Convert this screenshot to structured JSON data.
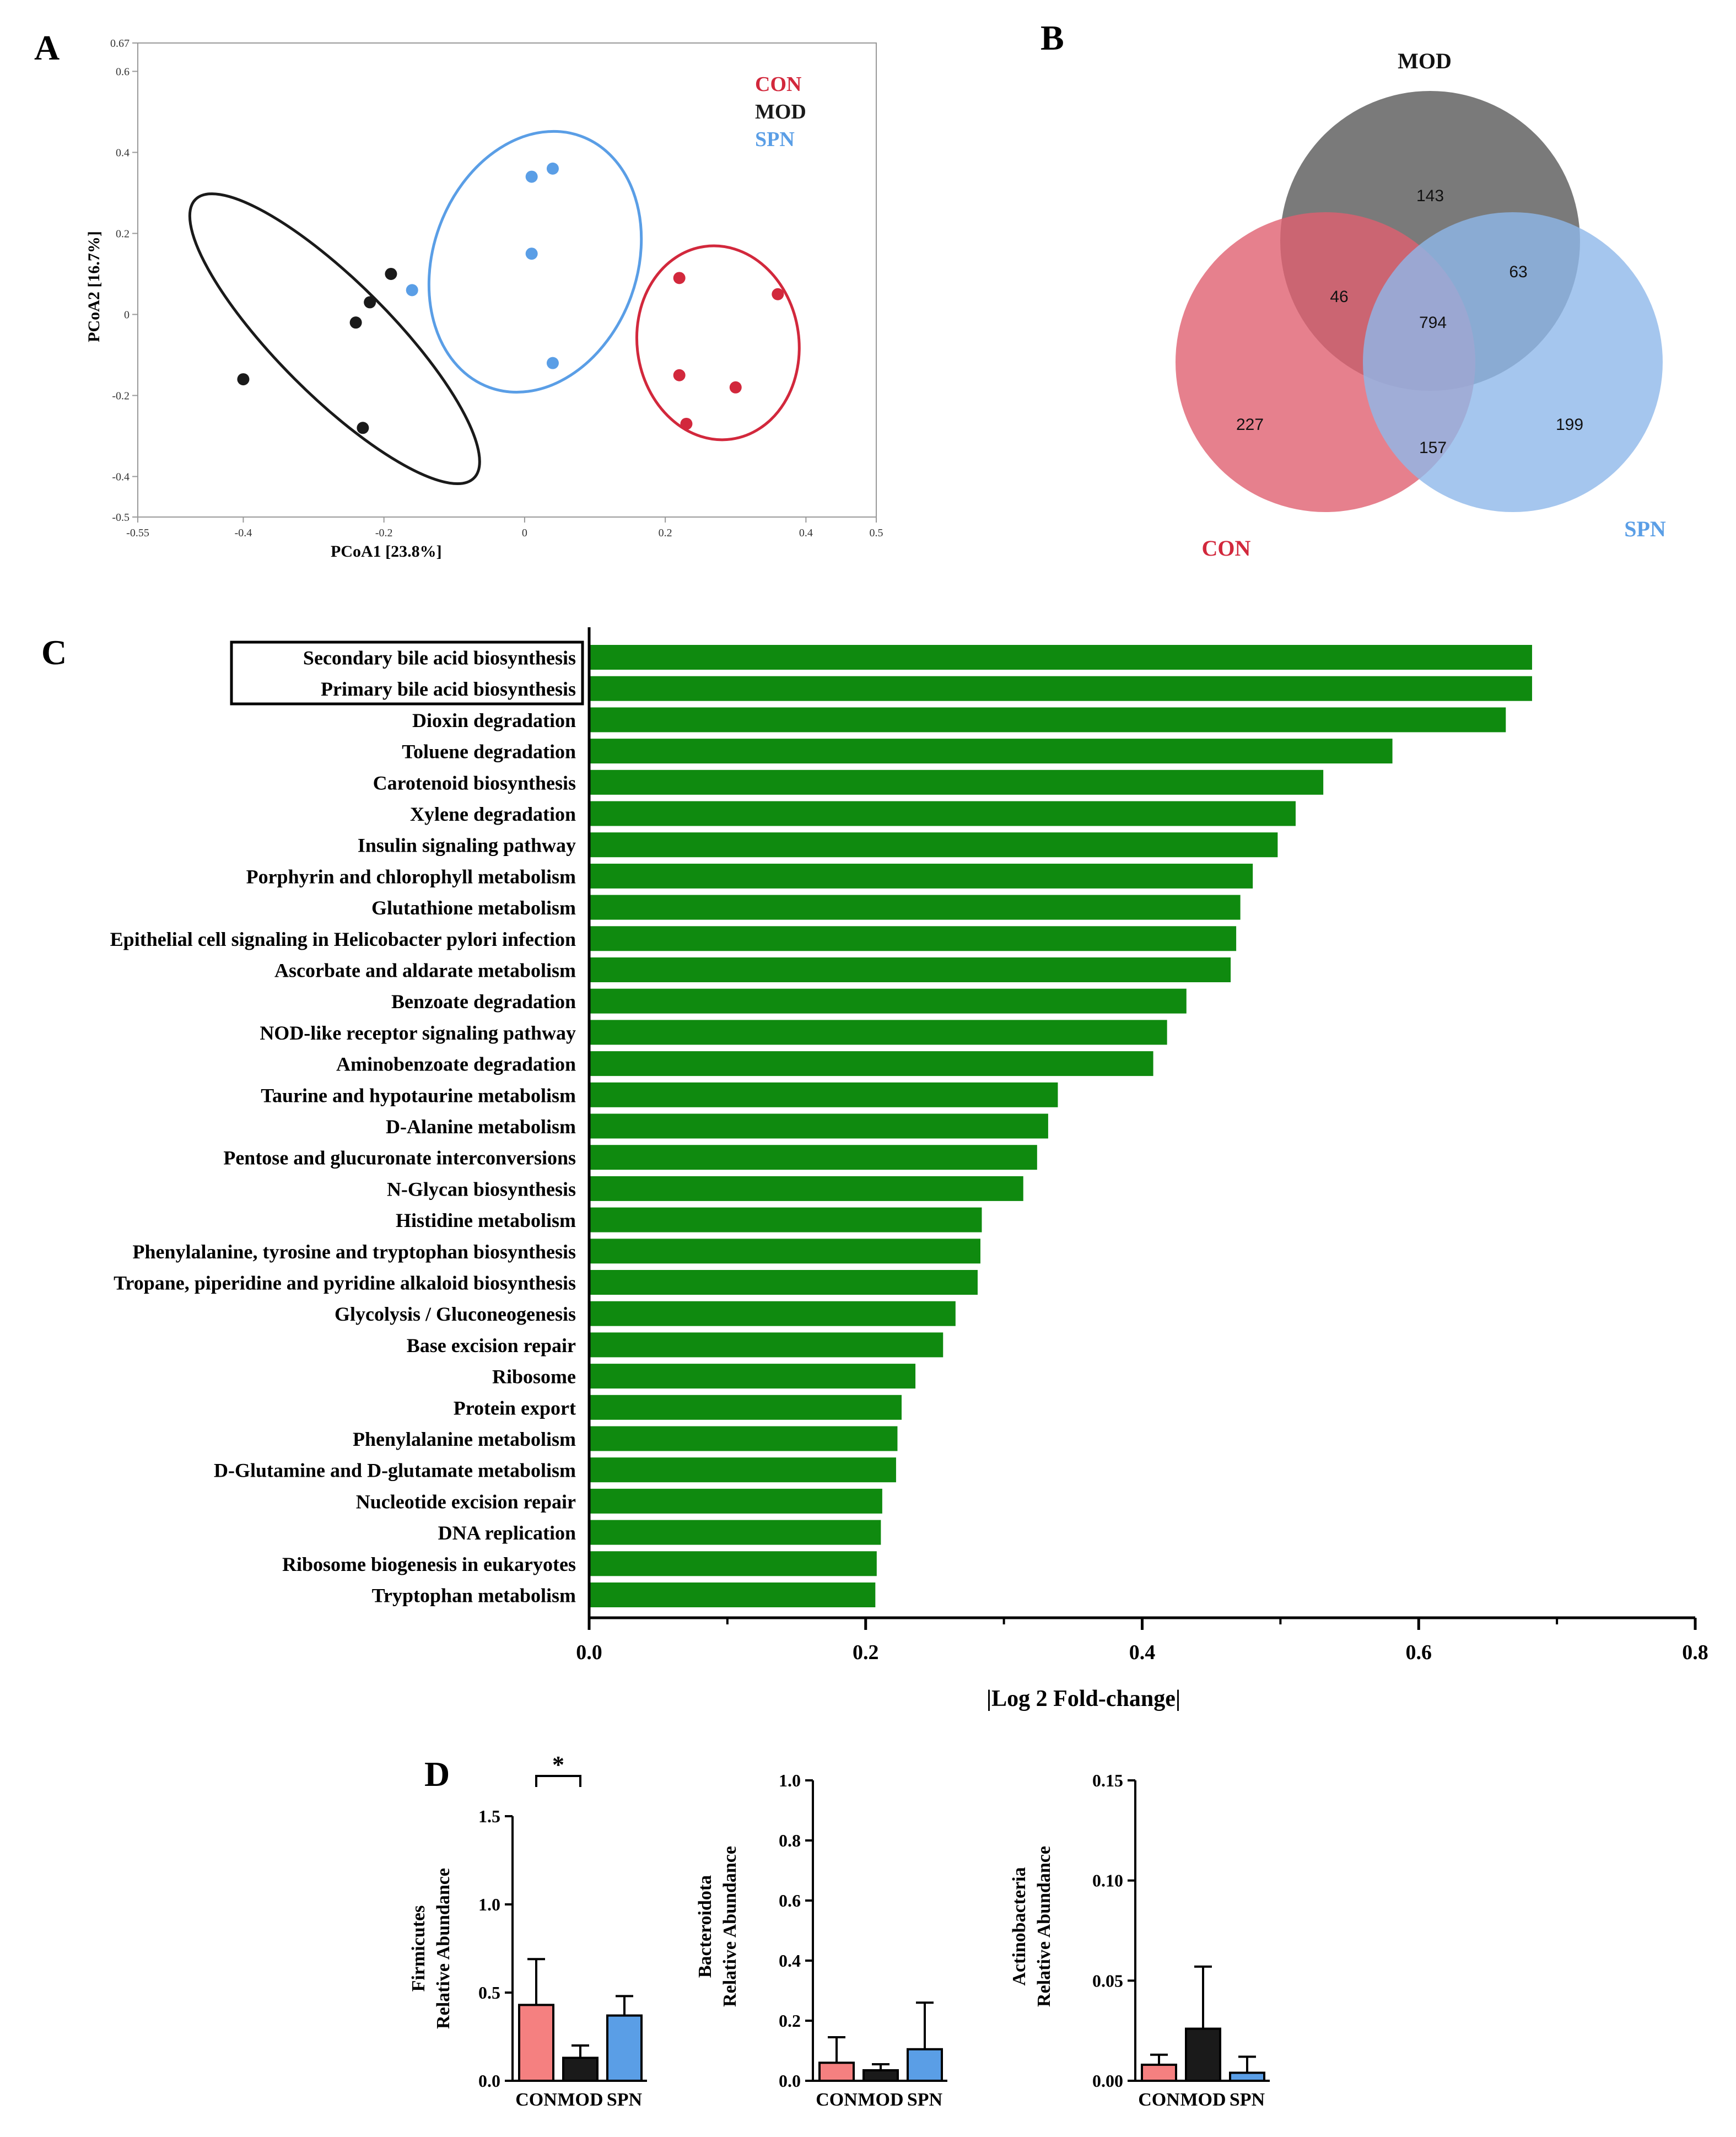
{
  "panel_labels": {
    "a": "A",
    "b": "B",
    "c": "C",
    "d": "D"
  },
  "colors": {
    "con": "#d2283c",
    "mod": "#1a1a1a",
    "spn": "#5a9ee6",
    "bar_green": "#0f8a0f",
    "con_bar": "#f58080",
    "venn_mod": "#555555",
    "venn_con": "#e06070",
    "venn_spn": "#8fb8ea"
  },
  "chart_data": [
    {
      "id": "A",
      "type": "scatter",
      "xlabel": "PCoA1 [23.8%]",
      "ylabel": "PCoA2 [16.7%]",
      "xlim": [
        -0.55,
        0.5
      ],
      "ylim": [
        -0.5,
        0.67
      ],
      "xticks": [
        "-0.55",
        "-0.4",
        "-0.2",
        "0",
        "0.2",
        "0.4",
        "0.5"
      ],
      "xtick_values": [
        -0.55,
        -0.4,
        -0.2,
        0,
        0.2,
        0.4,
        0.5
      ],
      "yticks": [
        "-0.5",
        "-0.4",
        "-0.2",
        "0",
        "0.2",
        "0.4",
        "0.6",
        "0.67"
      ],
      "ytick_values": [
        -0.5,
        -0.4,
        -0.2,
        0,
        0.2,
        0.4,
        0.6,
        0.67
      ],
      "legend": [
        "CON",
        "MOD",
        "SPN"
      ],
      "legend_position": "top-right",
      "series": [
        {
          "name": "CON",
          "color": "#d2283c",
          "points": [
            [
              0.22,
              0.09
            ],
            [
              0.36,
              0.05
            ],
            [
              0.22,
              -0.15
            ],
            [
              0.3,
              -0.18
            ],
            [
              0.23,
              -0.27
            ]
          ],
          "ellipse": {
            "cx": 0.275,
            "cy": -0.07,
            "rx": 0.115,
            "ry": 0.24,
            "angle": -8
          }
        },
        {
          "name": "MOD",
          "color": "#1a1a1a",
          "points": [
            [
              -0.19,
              0.1
            ],
            [
              -0.22,
              0.03
            ],
            [
              -0.24,
              -0.02
            ],
            [
              -0.4,
              -0.16
            ],
            [
              -0.23,
              -0.28
            ]
          ],
          "ellipse": {
            "cx": -0.27,
            "cy": -0.06,
            "rx": 0.28,
            "ry": 0.14,
            "angle": 45
          }
        },
        {
          "name": "SPN",
          "color": "#5a9ee6",
          "points": [
            [
              0.01,
              0.34
            ],
            [
              0.04,
              0.36
            ],
            [
              0.01,
              0.15
            ],
            [
              -0.16,
              0.06
            ],
            [
              0.04,
              -0.12
            ]
          ],
          "ellipse": {
            "cx": 0.015,
            "cy": 0.13,
            "rx": 0.145,
            "ry": 0.33,
            "angle": 20
          }
        }
      ]
    },
    {
      "id": "B",
      "type": "venn",
      "sets": [
        "MOD",
        "CON",
        "SPN"
      ],
      "regions": {
        "mod_only": "143",
        "con_only": "227",
        "spn_only": "199",
        "con_mod": "46",
        "mod_spn": "63",
        "con_spn": "157",
        "all": "794"
      }
    },
    {
      "id": "C",
      "type": "bar",
      "orientation": "horizontal",
      "xlabel": "|Log 2 Fold-change|",
      "xlim": [
        0,
        0.8
      ],
      "xticks": [
        "0.0",
        "0.2",
        "0.4",
        "0.6",
        "0.8"
      ],
      "xtick_values": [
        0,
        0.2,
        0.4,
        0.6,
        0.8
      ],
      "highlighted": [
        "Secondary bile acid biosynthesis",
        "Primary bile acid biosynthesis"
      ],
      "categories": [
        "Secondary bile acid biosynthesis",
        "Primary bile acid biosynthesis",
        "Dioxin degradation",
        "Toluene degradation",
        "Carotenoid biosynthesis",
        "Xylene degradation",
        "Insulin signaling pathway",
        "Porphyrin and chlorophyll metabolism",
        "Glutathione metabolism",
        "Epithelial cell signaling in Helicobacter pylori infection",
        "Ascorbate and aldarate metabolism",
        "Benzoate degradation",
        "NOD-like receptor signaling pathway",
        "Aminobenzoate degradation",
        "Taurine and hypotaurine metabolism",
        "D-Alanine metabolism",
        "Pentose and glucuronate interconversions",
        "N-Glycan biosynthesis",
        "Histidine metabolism",
        "Phenylalanine, tyrosine and tryptophan biosynthesis",
        "Tropane, piperidine and pyridine alkaloid biosynthesis",
        "Glycolysis / Gluconeogenesis",
        "Base excision repair",
        "Ribosome",
        "Protein export",
        "Phenylalanine metabolism",
        "D-Glutamine and D-glutamate metabolism",
        "Nucleotide excision repair",
        "DNA replication",
        "Ribosome biogenesis in eukaryotes",
        "Tryptophan metabolism"
      ],
      "values": [
        0.682,
        0.682,
        0.663,
        0.581,
        0.531,
        0.511,
        0.498,
        0.48,
        0.471,
        0.468,
        0.464,
        0.432,
        0.418,
        0.408,
        0.339,
        0.332,
        0.324,
        0.314,
        0.284,
        0.283,
        0.281,
        0.265,
        0.256,
        0.236,
        0.226,
        0.223,
        0.222,
        0.212,
        0.211,
        0.208,
        0.207
      ]
    },
    {
      "id": "D1",
      "type": "bar",
      "ylabel_line1": "Firmicutes",
      "ylabel_line2": "Relative Abundance",
      "categories": [
        "CON",
        "MOD",
        "SPN"
      ],
      "values": [
        0.43,
        0.13,
        0.37
      ],
      "errors": [
        0.26,
        0.07,
        0.11
      ],
      "ylim": [
        0,
        1.5
      ],
      "yticks": [
        "0.0",
        "0.5",
        "1.0",
        "1.5"
      ],
      "ytick_values": [
        0,
        0.5,
        1.0,
        1.5
      ],
      "significance": {
        "between": [
          "CON",
          "MOD"
        ],
        "label": "*"
      }
    },
    {
      "id": "D2",
      "type": "bar",
      "ylabel_line1": "Bacteroidota",
      "ylabel_line2": "Relative Abundance",
      "categories": [
        "CON",
        "MOD",
        "SPN"
      ],
      "values": [
        0.06,
        0.035,
        0.105
      ],
      "errors": [
        0.085,
        0.02,
        0.155
      ],
      "ylim": [
        0,
        1.0
      ],
      "yticks": [
        "0.0",
        "0.2",
        "0.4",
        "0.6",
        "0.8",
        "1.0"
      ],
      "ytick_values": [
        0,
        0.2,
        0.4,
        0.6,
        0.8,
        1.0
      ]
    },
    {
      "id": "D3",
      "type": "bar",
      "ylabel_line1": "Actinobacteria",
      "ylabel_line2": "Relative Abundance",
      "categories": [
        "CON",
        "MOD",
        "SPN"
      ],
      "values": [
        0.008,
        0.026,
        0.004
      ],
      "errors": [
        0.005,
        0.031,
        0.008
      ],
      "ylim": [
        0,
        0.15
      ],
      "yticks": [
        "0.00",
        "0.05",
        "0.10",
        "0.15"
      ],
      "ytick_values": [
        0,
        0.05,
        0.1,
        0.15
      ]
    }
  ]
}
